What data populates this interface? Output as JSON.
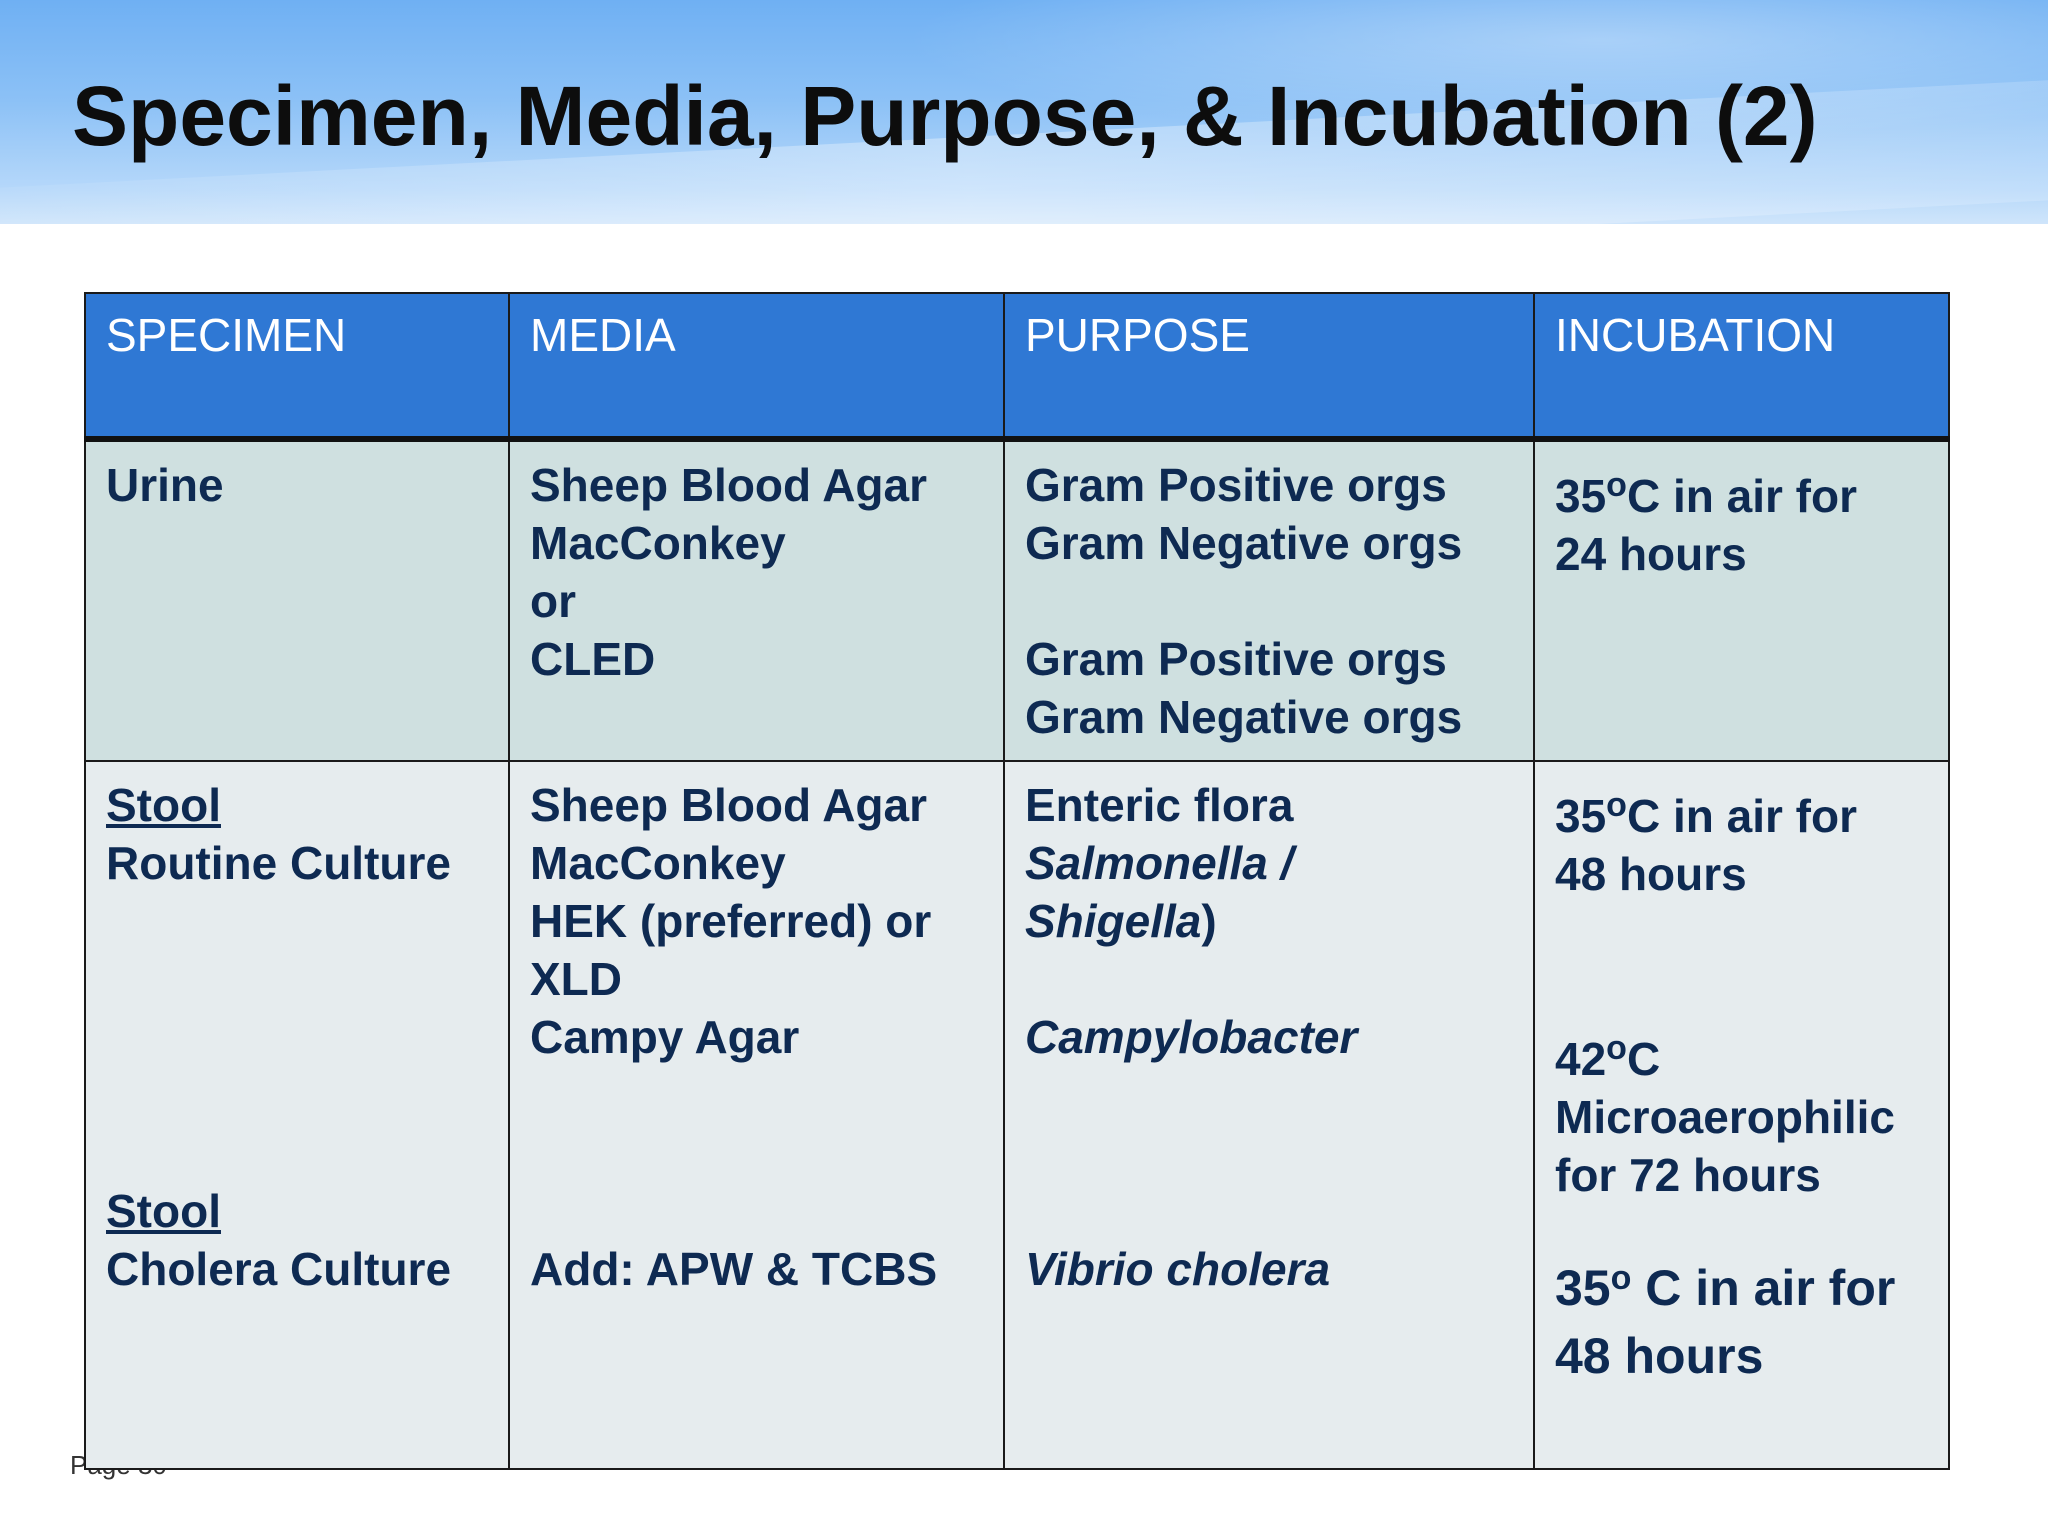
{
  "slide": {
    "title": "Specimen, Media, Purpose, & Incubation (2)",
    "page_label": "Page 30"
  },
  "table": {
    "headers": [
      "SPECIMEN",
      "MEDIA",
      "PURPOSE",
      "INCUBATION"
    ],
    "urine": {
      "specimen": "Urine",
      "media": [
        "Sheep Blood Agar",
        "MacConkey",
        "or",
        "CLED"
      ],
      "purpose": [
        "Gram Positive orgs",
        "Gram Negative orgs",
        "Gram Positive orgs",
        "Gram Negative orgs"
      ],
      "incubation": [
        "35",
        "C in air for",
        "24 hours"
      ]
    },
    "stool": {
      "specimen_routine_title": "Stool",
      "specimen_routine_sub": "Routine Culture",
      "specimen_cholera_title": "Stool",
      "specimen_cholera_sub": "Cholera Culture",
      "media": [
        "Sheep Blood Agar",
        "MacConkey",
        "HEK (preferred) or",
        "XLD",
        "Campy Agar",
        "Add: APW & TCBS"
      ],
      "purpose": [
        "Enteric flora",
        "Salmonella /",
        "Shigella",
        ")",
        "Campylobacter",
        "Vibrio cholera"
      ],
      "incubation": [
        "35",
        "C in air for",
        "48 hours",
        "42",
        "C",
        "Microaerophilic",
        "for 72 hours",
        "35",
        " C in air for",
        "48 hours"
      ]
    },
    "degree_mark": "o"
  }
}
